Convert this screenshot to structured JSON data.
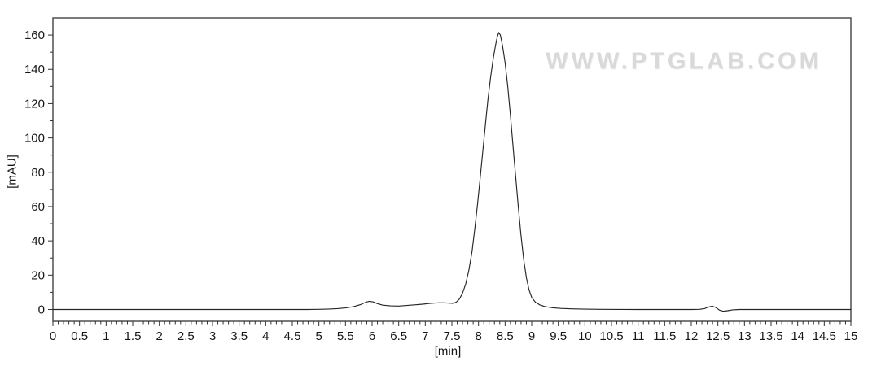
{
  "watermark": {
    "text": "WWW.PTGLAB.COM",
    "color": "#d9d9d9"
  },
  "colors": {
    "background": "#ffffff",
    "frame": "#4f4f4f",
    "ticks": "#333333",
    "trace": "#262626",
    "text": "#161616"
  },
  "chart_data": {
    "type": "line",
    "title": "",
    "xlabel": "[min]",
    "ylabel": "[mAU]",
    "xlim": [
      0,
      15
    ],
    "ylim": [
      -7,
      170
    ],
    "grid": false,
    "legend": "none",
    "x_major_tick_step": 0.5,
    "x_minor_tick_step": 0.1,
    "y_major_tick_step": 20,
    "y_minor_tick_step": 10,
    "x_tick_labels": [
      "0",
      "0.5",
      "1",
      "1.5",
      "2",
      "2.5",
      "3",
      "3.5",
      "4",
      "4.5",
      "5",
      "5.5",
      "6",
      "6.5",
      "7",
      "7.5",
      "8",
      "8.5",
      "9",
      "9.5",
      "10",
      "10.5",
      "11",
      "11.5",
      "12",
      "12.5",
      "13",
      "13.5",
      "14",
      "14.5",
      "15"
    ],
    "y_tick_labels": [
      "0",
      "20",
      "40",
      "60",
      "80",
      "100",
      "120",
      "140",
      "160"
    ],
    "main_peak": {
      "retention_min": 8.4,
      "height_mAU": 162
    },
    "minor_features": [
      {
        "retention_min": 5.95,
        "height_mAU": 4.8
      },
      {
        "retention_min": 7.25,
        "height_mAU": 3.9
      },
      {
        "retention_min": 12.4,
        "height_mAU": 1.9
      },
      {
        "retention_min": 12.6,
        "height_mAU": -1.0
      }
    ],
    "series": [
      {
        "name": "UV signal",
        "points": [
          [
            0,
            0
          ],
          [
            0.5,
            0
          ],
          [
            1,
            0
          ],
          [
            1.5,
            0
          ],
          [
            2,
            0
          ],
          [
            2.5,
            0
          ],
          [
            3,
            0
          ],
          [
            3.5,
            0
          ],
          [
            4,
            0
          ],
          [
            4.5,
            0
          ],
          [
            4.8,
            0
          ],
          [
            5,
            0.1
          ],
          [
            5.2,
            0.3
          ],
          [
            5.35,
            0.5
          ],
          [
            5.5,
            0.9
          ],
          [
            5.65,
            1.6
          ],
          [
            5.78,
            2.8
          ],
          [
            5.88,
            4.2
          ],
          [
            5.95,
            4.8
          ],
          [
            6.02,
            4.4
          ],
          [
            6.1,
            3.4
          ],
          [
            6.2,
            2.5
          ],
          [
            6.35,
            2.1
          ],
          [
            6.5,
            2
          ],
          [
            6.65,
            2.3
          ],
          [
            6.8,
            2.7
          ],
          [
            6.95,
            3.1
          ],
          [
            7.1,
            3.6
          ],
          [
            7.25,
            3.9
          ],
          [
            7.35,
            3.9
          ],
          [
            7.45,
            3.7
          ],
          [
            7.52,
            3.6
          ],
          [
            7.58,
            4.2
          ],
          [
            7.64,
            6
          ],
          [
            7.7,
            9.5
          ],
          [
            7.76,
            15
          ],
          [
            7.82,
            23
          ],
          [
            7.88,
            34
          ],
          [
            7.93,
            47
          ],
          [
            7.98,
            61
          ],
          [
            8.03,
            76
          ],
          [
            8.08,
            92
          ],
          [
            8.13,
            108
          ],
          [
            8.18,
            123
          ],
          [
            8.23,
            136
          ],
          [
            8.28,
            147
          ],
          [
            8.32,
            154
          ],
          [
            8.35,
            158.5
          ],
          [
            8.38,
            161.5
          ],
          [
            8.41,
            160
          ],
          [
            8.45,
            154
          ],
          [
            8.5,
            144
          ],
          [
            8.55,
            130
          ],
          [
            8.6,
            113
          ],
          [
            8.65,
            95
          ],
          [
            8.7,
            77
          ],
          [
            8.75,
            59
          ],
          [
            8.8,
            43
          ],
          [
            8.85,
            29
          ],
          [
            8.9,
            18.5
          ],
          [
            8.95,
            11.5
          ],
          [
            9,
            7
          ],
          [
            9.07,
            4.2
          ],
          [
            9.15,
            2.7
          ],
          [
            9.25,
            1.7
          ],
          [
            9.4,
            1
          ],
          [
            9.55,
            0.6
          ],
          [
            9.75,
            0.4
          ],
          [
            10,
            0.2
          ],
          [
            10.3,
            0.1
          ],
          [
            10.7,
            0.05
          ],
          [
            11,
            0
          ],
          [
            11.5,
            0
          ],
          [
            12,
            0
          ],
          [
            12.15,
            0.1
          ],
          [
            12.25,
            0.5
          ],
          [
            12.33,
            1.5
          ],
          [
            12.4,
            1.9
          ],
          [
            12.47,
            1
          ],
          [
            12.53,
            -0.4
          ],
          [
            12.6,
            -1
          ],
          [
            12.68,
            -0.7
          ],
          [
            12.78,
            -0.2
          ],
          [
            12.9,
            0
          ],
          [
            13.2,
            0
          ],
          [
            13.5,
            0
          ],
          [
            14,
            0
          ],
          [
            14.5,
            0
          ],
          [
            15,
            0
          ]
        ]
      }
    ]
  }
}
